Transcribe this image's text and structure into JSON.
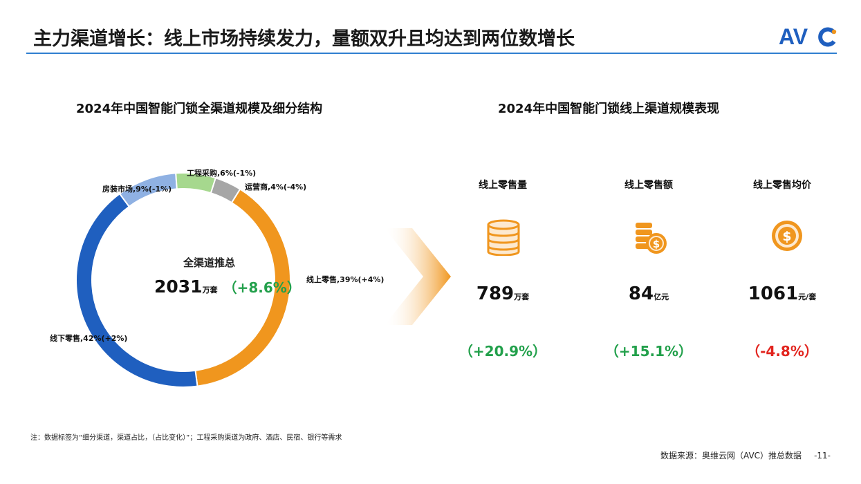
{
  "header": {
    "title": "主力渠道增长：线上市场持续发力，量额双升且均达到两位数增长",
    "logo_text": "AVC"
  },
  "left_panel": {
    "title": "2024年中国智能门锁全渠道规模及细分结构"
  },
  "right_panel": {
    "title": "2024年中国智能门锁线上渠道规模表现",
    "metrics": [
      {
        "label": "线上零售量",
        "value": "789",
        "unit": "万套",
        "change": "（+20.9%）",
        "icon": "coin-stack-icon",
        "change_color": "#22a04b"
      },
      {
        "label": "线上零售额",
        "value": "84",
        "unit": "亿元",
        "change": "（+15.1%）",
        "icon": "coins-dollar-icon",
        "change_color": "#22a04b"
      },
      {
        "label": "线上零售均价",
        "value": "1061",
        "unit": "元/套",
        "change": "（-4.8%）",
        "icon": "dollar-coin-icon",
        "change_color": "#e2251f"
      }
    ]
  },
  "chart_data": {
    "type": "pie",
    "style": "donut",
    "center_label": "全渠道推总",
    "total": 2031,
    "total_unit": "万套",
    "total_change": "（+8.6%）",
    "slices": [
      {
        "name": "线上零售",
        "share": 39,
        "change": "+4%",
        "label": "线上零售,39%(+4%)",
        "color": "#f0961e"
      },
      {
        "name": "线下零售",
        "share": 42,
        "change": "+2%",
        "label": "线下零售,42%(+2%)",
        "color": "#1f5fbf"
      },
      {
        "name": "房装市场",
        "share": 9,
        "change": "-1%",
        "label": "房装市场,9%(-1%)",
        "color": "#8fb1e3"
      },
      {
        "name": "工程采购",
        "share": 6,
        "change": "-1%",
        "label": "工程采购,6%(-1%)",
        "color": "#a6d88e"
      },
      {
        "name": "运营商",
        "share": 4,
        "change": "-4%",
        "label": "运营商,4%(-4%)",
        "color": "#a6a6a6"
      }
    ]
  },
  "footnote": "注：数据标签为“细分渠道，渠道占比，（占比变化）”；工程采购渠道为政府、酒店、民宿、银行等需求",
  "source": "数据来源：奥维云网（AVC）推总数据",
  "page_number": "-11-"
}
